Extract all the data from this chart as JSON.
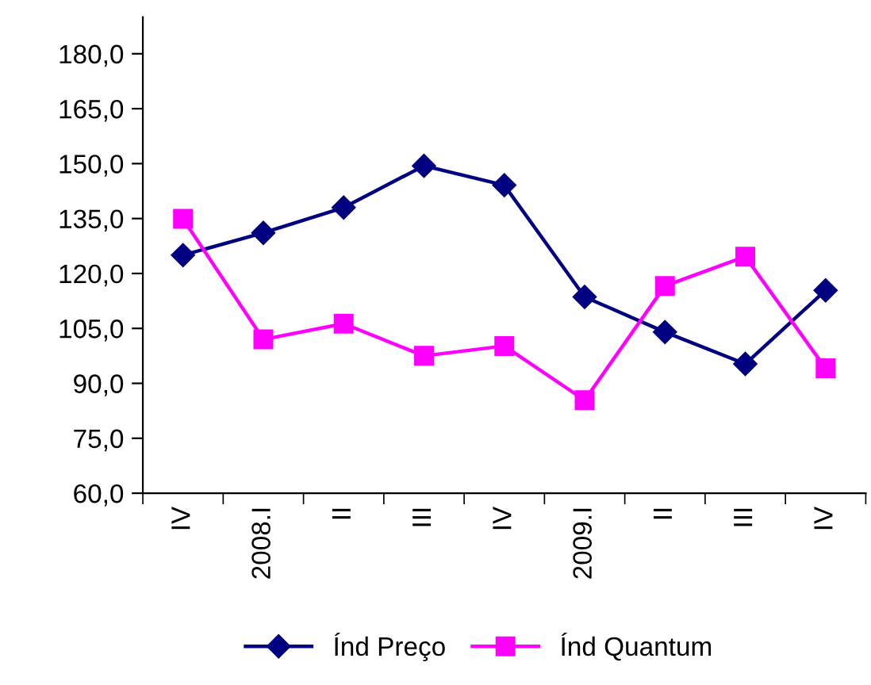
{
  "chart_data": {
    "type": "line",
    "categories": [
      "IV",
      "2008.I",
      "II",
      "III",
      "IV",
      "2009.I",
      "II",
      "III",
      "IV"
    ],
    "series": [
      {
        "name": "Índ Preço",
        "color": "#000080",
        "marker": "diamond",
        "values": [
          125.0,
          131.1,
          138.0,
          149.4,
          144.1,
          113.6,
          104.0,
          95.3,
          115.4
        ]
      },
      {
        "name": "Índ Quantum",
        "color": "#ff00ff",
        "marker": "square",
        "values": [
          134.9,
          102.0,
          106.3,
          97.5,
          100.2,
          85.4,
          116.6,
          124.6,
          94.1
        ]
      }
    ],
    "ylim": [
      60,
      190
    ],
    "yticks": [
      {
        "value": 60,
        "label": "60,0"
      },
      {
        "value": 75,
        "label": "75,0"
      },
      {
        "value": 90,
        "label": "90,0"
      },
      {
        "value": 105,
        "label": "105,0"
      },
      {
        "value": 120,
        "label": "120,0"
      },
      {
        "value": 135,
        "label": "135,0"
      },
      {
        "value": 150,
        "label": "150,0"
      },
      {
        "value": 165,
        "label": "165,0"
      },
      {
        "value": 180,
        "label": "180,0"
      }
    ],
    "grid": false,
    "legend": "bottom",
    "line_style": "solid"
  }
}
